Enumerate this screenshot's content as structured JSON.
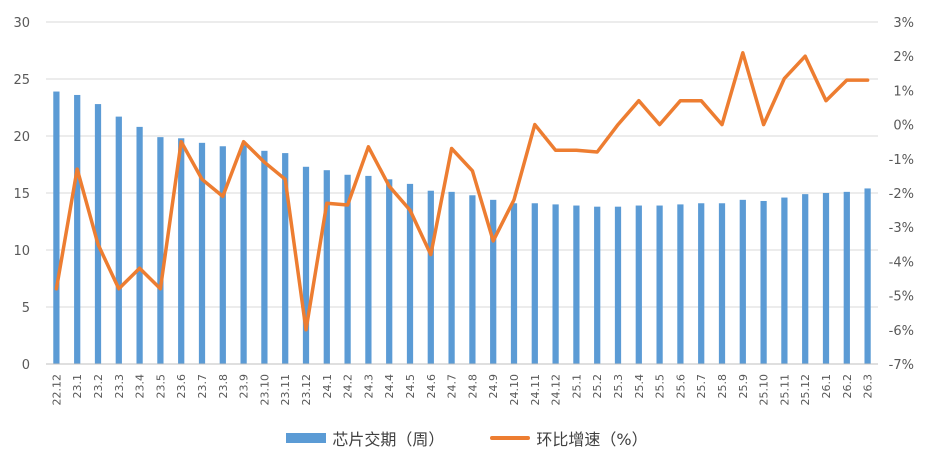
{
  "chart_data": {
    "type": "bar+line",
    "categories": [
      "22.12",
      "23.1",
      "23.2",
      "23.3",
      "23.4",
      "23.5",
      "23.6",
      "23.7",
      "23.8",
      "23.9",
      "23.10",
      "23.11",
      "23.12",
      "24.1",
      "24.2",
      "24.3",
      "24.4",
      "24.5",
      "24.6",
      "24.7",
      "24.8",
      "24.9",
      "24.10",
      "24.11",
      "24.12",
      "25.1",
      "25.2",
      "25.3",
      "25.4",
      "25.5",
      "25.6",
      "25.7",
      "25.8",
      "25.9",
      "25.10",
      "25.11",
      "25.12",
      "26.1",
      "26.2",
      "26.3"
    ],
    "series": [
      {
        "name": "芯片交期（周）",
        "type": "bar",
        "axis": "left",
        "color": "#5B9BD5",
        "values": [
          23.9,
          23.6,
          22.8,
          21.7,
          20.8,
          19.9,
          19.8,
          19.4,
          19.1,
          19.2,
          18.7,
          18.5,
          17.3,
          17.0,
          16.6,
          16.5,
          16.2,
          15.8,
          15.2,
          15.1,
          14.8,
          14.4,
          14.1,
          14.1,
          14.0,
          13.9,
          13.8,
          13.8,
          13.9,
          13.9,
          14.0,
          14.1,
          14.1,
          14.4,
          14.3,
          14.6,
          14.9,
          15.0,
          15.1,
          15.4
        ]
      },
      {
        "name": "环比增速（%）",
        "type": "line",
        "axis": "right",
        "color": "#ED7D31",
        "values": [
          -4.8,
          -1.3,
          -3.5,
          -4.8,
          -4.2,
          -4.8,
          -0.5,
          -1.6,
          -2.1,
          -0.5,
          -1.1,
          -1.6,
          -6.0,
          -2.3,
          -2.35,
          -0.65,
          -1.8,
          -2.5,
          -3.8,
          -0.7,
          -1.35,
          -3.4,
          -2.2,
          0.0,
          -0.75,
          -0.75,
          -0.8,
          0.0,
          0.7,
          0.0,
          0.7,
          0.7,
          0.0,
          2.1,
          0.0,
          1.35,
          2.0,
          0.7,
          1.3,
          1.3
        ]
      }
    ],
    "y_left": {
      "min": 0,
      "max": 30,
      "step": 5,
      "ticks": [
        "0",
        "5",
        "10",
        "15",
        "20",
        "25",
        "30"
      ]
    },
    "y_right": {
      "min": -7,
      "max": 3,
      "step": 1,
      "ticks": [
        "-7%",
        "-6%",
        "-5%",
        "-4%",
        "-3%",
        "-2%",
        "-1%",
        "0%",
        "1%",
        "2%",
        "3%"
      ]
    },
    "grid": true,
    "legend_position": "bottom"
  },
  "legend": {
    "bar_label": "芯片交期（周）",
    "line_label": "环比增速（%）"
  }
}
